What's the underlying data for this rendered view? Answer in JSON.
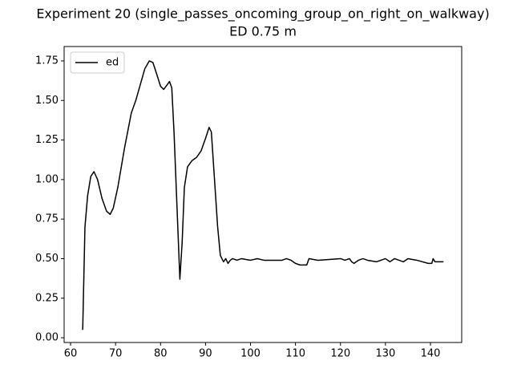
{
  "chart_data": {
    "type": "line",
    "title": "Experiment 20 (single_passes_oncoming_group_on_right_on_walkway)",
    "subtitle": "ED 0.75 m",
    "x": [
      62.7,
      63.2,
      63.8,
      64.5,
      65.2,
      66,
      67,
      68,
      68.8,
      69.5,
      70.5,
      72,
      73.5,
      74.5,
      75.5,
      76.5,
      77.5,
      78.3,
      79,
      80,
      80.7,
      81.5,
      82,
      82.5,
      83,
      83.7,
      84.3,
      84.8,
      85.3,
      86,
      87,
      88,
      89,
      90,
      90.8,
      91.3,
      92,
      92.7,
      93.3,
      94,
      94.5,
      95,
      95.5,
      96,
      97,
      98,
      100,
      101.5,
      103,
      107,
      108,
      109,
      110,
      111,
      112.5,
      113,
      115,
      120,
      121,
      122,
      122.5,
      123,
      124,
      125,
      126,
      128,
      130,
      131,
      132,
      134,
      135,
      137,
      139.5,
      140.3,
      140.6,
      141,
      142.9
    ],
    "series": [
      {
        "name": "ed",
        "color": "#000000",
        "values": [
          0.05,
          0.7,
          0.9,
          1.02,
          1.05,
          1.0,
          0.88,
          0.8,
          0.78,
          0.82,
          0.95,
          1.2,
          1.42,
          1.5,
          1.6,
          1.7,
          1.75,
          1.74,
          1.68,
          1.59,
          1.57,
          1.6,
          1.62,
          1.58,
          1.3,
          0.8,
          0.37,
          0.6,
          0.95,
          1.08,
          1.12,
          1.14,
          1.18,
          1.26,
          1.33,
          1.3,
          1.0,
          0.7,
          0.52,
          0.48,
          0.5,
          0.47,
          0.49,
          0.5,
          0.49,
          0.5,
          0.49,
          0.5,
          0.49,
          0.49,
          0.5,
          0.49,
          0.47,
          0.46,
          0.46,
          0.5,
          0.49,
          0.5,
          0.49,
          0.5,
          0.48,
          0.47,
          0.49,
          0.5,
          0.49,
          0.48,
          0.5,
          0.48,
          0.5,
          0.48,
          0.5,
          0.49,
          0.47,
          0.47,
          0.5,
          0.48,
          0.48
        ]
      }
    ],
    "xlim": [
      58.57,
      146.95
    ],
    "ylim": [
      -0.03,
      1.841
    ],
    "xticks": [
      60,
      70,
      80,
      90,
      100,
      110,
      120,
      130,
      140
    ],
    "yticks": [
      {
        "value": 0,
        "label": "0.00"
      },
      0.25,
      {
        "value": 0.5,
        "label": "0.50"
      },
      0.75,
      {
        "value": 1,
        "label": "1.00"
      },
      1.25,
      {
        "value": 1.5,
        "label": "1.50"
      },
      1.75
    ],
    "legend": "upper left",
    "grid": false
  }
}
